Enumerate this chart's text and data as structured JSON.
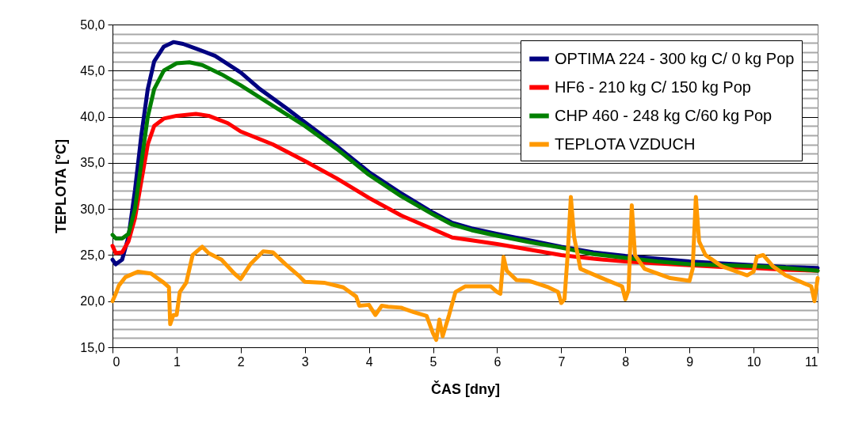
{
  "chart_data": {
    "type": "line",
    "xlabel": "ČAS [dny]",
    "ylabel": "TEPLOTA [°C]",
    "xlim": [
      0,
      11
    ],
    "xticks": [
      0,
      1,
      2,
      3,
      4,
      5,
      6,
      7,
      8,
      9,
      10,
      11
    ],
    "ylim": [
      15,
      50
    ],
    "yticks": [
      {
        "value": 15,
        "label": "15,0"
      },
      {
        "value": 16,
        "label": null
      },
      {
        "value": 17,
        "label": null
      },
      {
        "value": 18,
        "label": null
      },
      {
        "value": 19,
        "label": null
      },
      {
        "value": 20,
        "label": "20,0"
      },
      {
        "value": 21,
        "label": null
      },
      {
        "value": 22,
        "label": null
      },
      {
        "value": 23,
        "label": null
      },
      {
        "value": 24,
        "label": null
      },
      {
        "value": 25,
        "label": "25,0"
      },
      {
        "value": 26,
        "label": null
      },
      {
        "value": 27,
        "label": null
      },
      {
        "value": 28,
        "label": null
      },
      {
        "value": 29,
        "label": null
      },
      {
        "value": 30,
        "label": "30,0"
      },
      {
        "value": 31,
        "label": null
      },
      {
        "value": 32,
        "label": null
      },
      {
        "value": 33,
        "label": null
      },
      {
        "value": 34,
        "label": null
      },
      {
        "value": 35,
        "label": "35,0"
      },
      {
        "value": 36,
        "label": null
      },
      {
        "value": 37,
        "label": null
      },
      {
        "value": 38,
        "label": null
      },
      {
        "value": 39,
        "label": null
      },
      {
        "value": 40,
        "label": "40,0"
      },
      {
        "value": 41,
        "label": null
      },
      {
        "value": 42,
        "label": null
      },
      {
        "value": 43,
        "label": null
      },
      {
        "value": 44,
        "label": null
      },
      {
        "value": 45,
        "label": "45,0"
      },
      {
        "value": 46,
        "label": null
      },
      {
        "value": 47,
        "label": null
      },
      {
        "value": 48,
        "label": null
      },
      {
        "value": 49,
        "label": null
      },
      {
        "value": 50,
        "label": "50,0"
      }
    ],
    "grid": "y",
    "legend": "top right",
    "marker": "none",
    "line_style": "solid",
    "series": [
      {
        "name": "OPTIMA 224 - 300 kg C/ 0 kg Pop",
        "color": "#000080",
        "x": [
          0,
          0.05,
          0.15,
          0.25,
          0.35,
          0.45,
          0.55,
          0.65,
          0.8,
          0.95,
          1.1,
          1.3,
          1.6,
          2.0,
          2.3,
          2.7,
          3.0,
          3.5,
          4.0,
          4.5,
          5.0,
          5.3,
          5.6,
          6.0,
          6.5,
          7.0,
          7.5,
          8.0,
          8.5,
          9.0,
          9.5,
          10,
          10.5,
          11
        ],
        "values": [
          24.5,
          24.0,
          24.5,
          27,
          32,
          38,
          43,
          46,
          47.6,
          48.1,
          47.9,
          47.4,
          46.6,
          44.8,
          43.0,
          41.0,
          39.4,
          36.8,
          34.0,
          31.7,
          29.6,
          28.5,
          27.9,
          27.3,
          26.6,
          25.9,
          25.3,
          24.9,
          24.6,
          24.3,
          24.1,
          23.9,
          23.7,
          23.6
        ]
      },
      {
        "name": "HF6 - 210 kg C/ 150 kg Pop",
        "color": "#ff0000",
        "x": [
          0,
          0.05,
          0.15,
          0.25,
          0.35,
          0.45,
          0.55,
          0.65,
          0.8,
          1.0,
          1.3,
          1.5,
          1.8,
          2.0,
          2.5,
          3.0,
          3.5,
          4.0,
          4.5,
          5.0,
          5.3,
          5.6,
          6,
          6.5,
          7,
          7.5,
          8,
          8.5,
          9,
          9.5,
          10,
          10.5,
          11
        ],
        "values": [
          26,
          25.2,
          25.3,
          26.5,
          29,
          33,
          37,
          39,
          39.8,
          40.1,
          40.3,
          40.1,
          39.3,
          38.4,
          37.0,
          35.2,
          33.3,
          31.2,
          29.3,
          27.8,
          26.9,
          26.6,
          26.2,
          25.6,
          25.0,
          24.6,
          24.3,
          24.1,
          23.9,
          23.7,
          23.6,
          23.4,
          23.3
        ]
      },
      {
        "name": "CHP 460 - 248 kg C/60 kg Pop",
        "color": "#008000",
        "x": [
          0,
          0.05,
          0.15,
          0.25,
          0.35,
          0.45,
          0.55,
          0.65,
          0.8,
          1.0,
          1.2,
          1.4,
          1.7,
          2.0,
          2.5,
          3.0,
          3.5,
          4.0,
          4.5,
          5.0,
          5.3,
          5.6,
          6,
          6.5,
          7,
          7.5,
          8,
          8.5,
          9,
          9.5,
          10,
          10.5,
          11
        ],
        "values": [
          27.2,
          26.8,
          26.8,
          27.3,
          30,
          35,
          40,
          43,
          45,
          45.8,
          45.9,
          45.6,
          44.6,
          43.4,
          41.2,
          39.0,
          36.5,
          33.7,
          31.4,
          29.4,
          28.3,
          27.7,
          27.1,
          26.4,
          25.8,
          25.1,
          24.7,
          24.3,
          24.0,
          23.9,
          23.8,
          23.6,
          23.3
        ]
      },
      {
        "name": "TEPLOTA VZDUCH",
        "color": "#ff9900",
        "x": [
          0,
          0.05,
          0.1,
          0.2,
          0.4,
          0.6,
          0.8,
          0.88,
          0.9,
          0.95,
          1.0,
          1.05,
          1.15,
          1.25,
          1.4,
          1.5,
          1.7,
          1.9,
          2.0,
          2.15,
          2.35,
          2.5,
          2.7,
          2.9,
          3.0,
          3.3,
          3.6,
          3.8,
          3.85,
          4.0,
          4.1,
          4.2,
          4.3,
          4.5,
          4.7,
          4.9,
          5.0,
          5.05,
          5.1,
          5.15,
          5.25,
          5.35,
          5.5,
          5.9,
          6.0,
          6.05,
          6.1,
          6.15,
          6.3,
          6.5,
          6.8,
          6.95,
          7.0,
          7.05,
          7.1,
          7.15,
          7.2,
          7.3,
          7.6,
          7.95,
          8.0,
          8.05,
          8.1,
          8.15,
          8.3,
          8.7,
          9.0,
          9.05,
          9.1,
          9.15,
          9.25,
          9.5,
          9.9,
          10.0,
          10.05,
          10.15,
          10.3,
          10.5,
          10.9,
          10.95,
          11.0
        ],
        "values": [
          20,
          20.8,
          21.7,
          22.6,
          23.2,
          23.0,
          22.0,
          21.5,
          17.5,
          18.5,
          18.5,
          21,
          22,
          25,
          25.9,
          25.2,
          24.5,
          23.0,
          22.4,
          24,
          25.4,
          25.3,
          24.0,
          22.8,
          22.1,
          22.0,
          21.5,
          20.5,
          19.5,
          19.6,
          18.5,
          19.5,
          19.4,
          19.3,
          18.8,
          18.4,
          16.5,
          15.8,
          18,
          16.2,
          18.5,
          21,
          21.6,
          21.6,
          21.0,
          20.8,
          24.8,
          23.3,
          22.3,
          22.2,
          21.5,
          21.0,
          19.8,
          20.2,
          25,
          31.3,
          27,
          23.5,
          22.6,
          21.6,
          20.2,
          21.2,
          30.4,
          25,
          23.5,
          22.5,
          22.2,
          23.5,
          31.3,
          26.5,
          25,
          23.8,
          22.8,
          23.2,
          24.8,
          25,
          23.8,
          22.8,
          21.6,
          20,
          22.5
        ]
      }
    ]
  }
}
